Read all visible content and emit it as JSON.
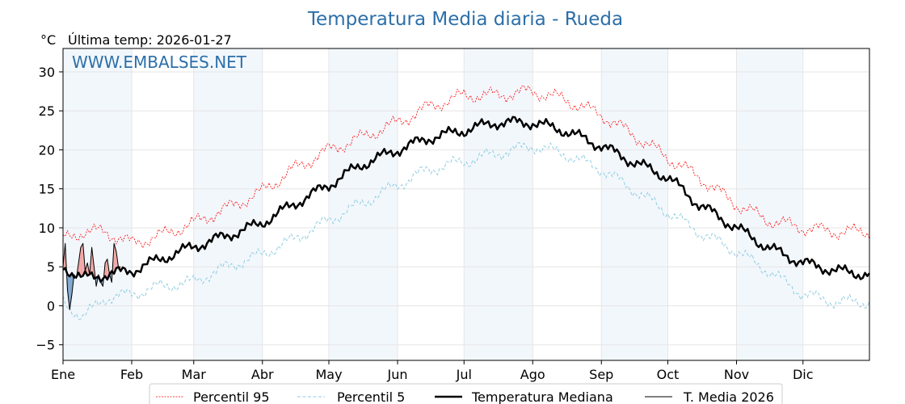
{
  "chart_data": {
    "type": "line",
    "title": "Temperatura Media diaria - Rueda",
    "unit_label": "°C",
    "last_temp_text": "Última temp: 2026-01-27",
    "watermark": "WWW.EMBALSES.NET",
    "ylim": [
      -7,
      33
    ],
    "yticks": [
      "30",
      "25",
      "20",
      "15",
      "10",
      "5",
      "0",
      "−5"
    ],
    "ytick_values": [
      30,
      25,
      20,
      15,
      10,
      5,
      0,
      -5
    ],
    "months": [
      "Ene",
      "Feb",
      "Mar",
      "Abr",
      "May",
      "Jun",
      "Jul",
      "Ago",
      "Sep",
      "Oct",
      "Nov",
      "Dic"
    ],
    "grid": true,
    "legend_placement": "bottom",
    "series": [
      {
        "name": "Percentil 95",
        "color": "#ff0000",
        "style": "dotted",
        "x": [
          1,
          10,
          20,
          32,
          45,
          59,
          75,
          90,
          105,
          121,
          135,
          152,
          166,
          182,
          196,
          213,
          227,
          244,
          258,
          274,
          288,
          305,
          319,
          335,
          350,
          365
        ],
        "y": [
          8.5,
          9.5,
          9.5,
          8,
          9,
          10.5,
          12.5,
          14.5,
          17.5,
          20,
          21.5,
          23.5,
          25.5,
          27,
          27,
          27.5,
          26.5,
          24.5,
          22,
          19,
          16.5,
          13,
          11,
          10,
          9.5,
          9.5
        ]
      },
      {
        "name": "Percentil 5",
        "color": "#8fcde0",
        "style": "dashed",
        "x": [
          1,
          10,
          20,
          32,
          45,
          59,
          75,
          90,
          105,
          121,
          135,
          152,
          166,
          182,
          196,
          213,
          227,
          244,
          258,
          274,
          288,
          305,
          319,
          335,
          350,
          365
        ],
        "y": [
          0.5,
          -1.5,
          1,
          1.5,
          2.5,
          3,
          5,
          6.5,
          8.5,
          11,
          13,
          15.5,
          17.5,
          18.5,
          19.5,
          20.5,
          19.5,
          17.5,
          15,
          12,
          9.5,
          7,
          4.5,
          1.5,
          0.5,
          0.5
        ]
      },
      {
        "name": "Temperatura Mediana",
        "color": "#000000",
        "style": "solid-thick",
        "x": [
          1,
          10,
          20,
          32,
          45,
          59,
          75,
          90,
          105,
          121,
          135,
          152,
          166,
          182,
          196,
          213,
          227,
          244,
          258,
          274,
          288,
          305,
          319,
          335,
          350,
          365
        ],
        "y": [
          5,
          3.5,
          4,
          4.5,
          6,
          7.5,
          9,
          10.5,
          13,
          15.5,
          18,
          20,
          21.5,
          22.5,
          23.5,
          23.5,
          22.5,
          20.5,
          18.5,
          16.5,
          13,
          10,
          7.5,
          5.5,
          4.5,
          4
        ]
      },
      {
        "name": "T. Media 2026",
        "color": "#000000",
        "style": "solid-thin",
        "x": [
          1,
          2,
          3,
          4,
          5,
          6,
          7,
          8,
          9,
          10,
          11,
          12,
          13,
          14,
          15,
          16,
          17,
          18,
          19,
          20,
          21,
          22,
          23,
          24,
          25,
          26,
          27
        ],
        "y": [
          5,
          8,
          2,
          -0.5,
          1.5,
          4,
          3.5,
          5.5,
          7.5,
          8,
          4.5,
          5.5,
          4,
          7.5,
          5,
          2.5,
          4,
          3,
          2.5,
          5.5,
          6,
          4,
          3,
          8,
          7,
          5,
          5
        ]
      }
    ]
  }
}
